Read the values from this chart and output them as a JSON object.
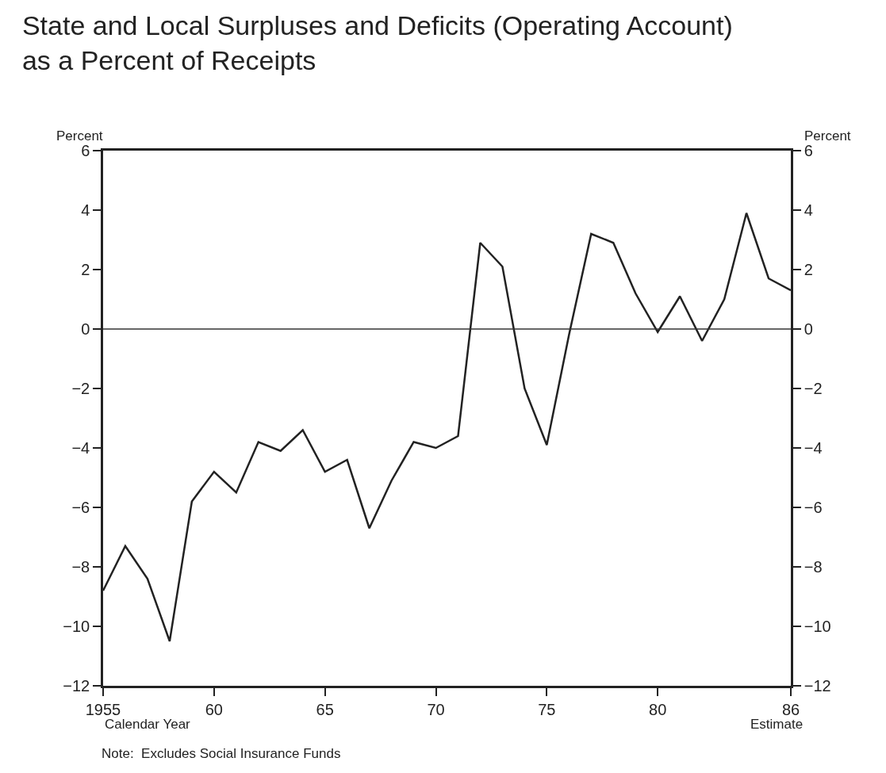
{
  "chart_data": {
    "type": "line",
    "title": "State and Local Surpluses and Deficits (Operating Account)\nas a Percent of Receipts",
    "ylabel": "Percent",
    "y2label": "Percent",
    "xlabel": "Calendar Year",
    "x": [
      1955,
      1956,
      1957,
      1958,
      1959,
      1960,
      1961,
      1962,
      1963,
      1964,
      1965,
      1966,
      1967,
      1968,
      1969,
      1970,
      1971,
      1972,
      1973,
      1974,
      1975,
      1976,
      1977,
      1978,
      1979,
      1980,
      1981,
      1982,
      1983,
      1984,
      1985,
      1986
    ],
    "series": [
      {
        "color": "#222222",
        "values": [
          -8.8,
          -7.3,
          -8.4,
          -10.5,
          -5.8,
          -4.8,
          -5.5,
          -3.8,
          -4.1,
          -3.4,
          -4.8,
          -4.4,
          -6.7,
          -5.1,
          -3.8,
          -4.0,
          -3.6,
          2.9,
          2.1,
          -2.0,
          -3.9,
          -0.2,
          3.2,
          2.9,
          1.2,
          -0.1,
          1.1,
          -0.4,
          1.0,
          3.9,
          1.7,
          1.3
        ]
      }
    ],
    "xlim": [
      1955,
      1986
    ],
    "xticks": [
      {
        "value": 1955,
        "label": "1955"
      },
      {
        "value": 1960,
        "label": "60"
      },
      {
        "value": 1965,
        "label": "65"
      },
      {
        "value": 1970,
        "label": "70"
      },
      {
        "value": 1975,
        "label": "75"
      },
      {
        "value": 1980,
        "label": "80"
      },
      {
        "value": 1986,
        "label": "86"
      }
    ],
    "ylim": [
      -12,
      6
    ],
    "yticks": [
      -12,
      -10,
      -8,
      -6,
      -4,
      -2,
      0,
      2,
      4,
      6
    ],
    "y2lim": [
      -12,
      6
    ],
    "y2ticks": [
      -12,
      -10,
      -8,
      -6,
      -4,
      -2,
      0,
      2,
      4,
      6
    ],
    "ref_lines": [
      {
        "axis": "y",
        "value": 0,
        "color": "#333333"
      }
    ],
    "annotations": [
      "Estimate",
      "Note:  Excludes Social Insurance Funds"
    ],
    "legend": false,
    "marker": "none",
    "line_style": "solid"
  }
}
